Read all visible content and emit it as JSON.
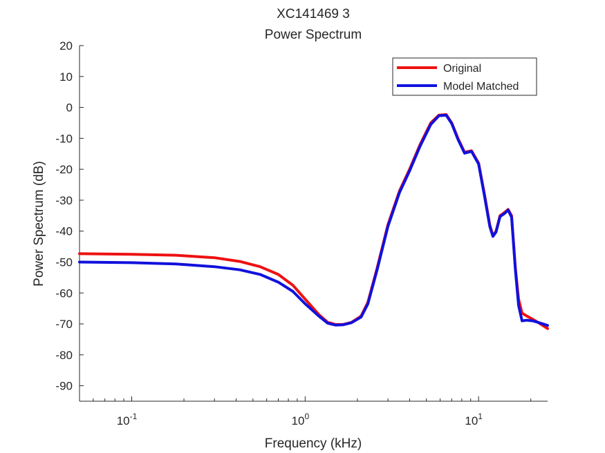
{
  "chart_data": {
    "type": "line",
    "title": "XC141469 3",
    "subtitle": "Power Spectrum",
    "xlabel": "Frequency (kHz)",
    "ylabel": "Power Spectrum (dB)",
    "xscale": "log",
    "xlim": [
      0.05,
      25
    ],
    "ylim": [
      -95,
      20
    ],
    "yticks": [
      20,
      10,
      0,
      -10,
      -20,
      -30,
      -40,
      -50,
      -60,
      -70,
      -80,
      -90
    ],
    "ytick_labels": [
      "20",
      "10",
      "0",
      "-10",
      "-20",
      "-30",
      "-40",
      "-50",
      "-60",
      "-70",
      "-80",
      "-90"
    ],
    "xticks": [
      {
        "value": 0.1,
        "base": "10",
        "exp": "-1"
      },
      {
        "value": 1,
        "base": "10",
        "exp": "0"
      },
      {
        "value": 10,
        "base": "10",
        "exp": "1"
      }
    ],
    "grid": false,
    "legend_position": "top-right",
    "series": [
      {
        "name": "Original",
        "color": "#ee1111",
        "points": [
          [
            0.05,
            -47.3
          ],
          [
            0.1,
            -47.5
          ],
          [
            0.18,
            -47.8
          ],
          [
            0.3,
            -48.6
          ],
          [
            0.42,
            -49.8
          ],
          [
            0.55,
            -51.5
          ],
          [
            0.7,
            -54
          ],
          [
            0.85,
            -57.5
          ],
          [
            1.0,
            -62
          ],
          [
            1.2,
            -67
          ],
          [
            1.35,
            -69.5
          ],
          [
            1.5,
            -70.2
          ],
          [
            1.65,
            -70.2
          ],
          [
            1.85,
            -69.5
          ],
          [
            2.1,
            -67.5
          ],
          [
            2.3,
            -63
          ],
          [
            2.6,
            -52
          ],
          [
            3.0,
            -38
          ],
          [
            3.5,
            -27
          ],
          [
            4.0,
            -20
          ],
          [
            4.6,
            -12
          ],
          [
            5.3,
            -5
          ],
          [
            5.9,
            -2.5
          ],
          [
            6.5,
            -2.3
          ],
          [
            7.0,
            -5
          ],
          [
            7.6,
            -10
          ],
          [
            8.3,
            -14.5
          ],
          [
            9.1,
            -14
          ],
          [
            10.0,
            -18
          ],
          [
            10.8,
            -28
          ],
          [
            11.6,
            -38
          ],
          [
            12.1,
            -41.5
          ],
          [
            12.6,
            -40
          ],
          [
            13.3,
            -35
          ],
          [
            14.1,
            -34
          ],
          [
            14.8,
            -33
          ],
          [
            15.5,
            -35
          ],
          [
            16.3,
            -52
          ],
          [
            17.0,
            -62
          ],
          [
            17.8,
            -66.5
          ],
          [
            19.0,
            -67.5
          ],
          [
            20.5,
            -68.5
          ],
          [
            22.0,
            -69.5
          ],
          [
            25.0,
            -71.5
          ]
        ]
      },
      {
        "name": "Model Matched",
        "color": "#1111dd",
        "points": [
          [
            0.05,
            -50
          ],
          [
            0.1,
            -50.2
          ],
          [
            0.18,
            -50.6
          ],
          [
            0.3,
            -51.5
          ],
          [
            0.42,
            -52.5
          ],
          [
            0.55,
            -54
          ],
          [
            0.7,
            -56.5
          ],
          [
            0.85,
            -59.5
          ],
          [
            1.0,
            -63.5
          ],
          [
            1.2,
            -67.5
          ],
          [
            1.35,
            -69.8
          ],
          [
            1.5,
            -70.4
          ],
          [
            1.65,
            -70.3
          ],
          [
            1.85,
            -69.6
          ],
          [
            2.1,
            -67.8
          ],
          [
            2.3,
            -63.5
          ],
          [
            2.6,
            -52.5
          ],
          [
            3.0,
            -38.5
          ],
          [
            3.5,
            -27.5
          ],
          [
            4.0,
            -20.5
          ],
          [
            4.6,
            -12.5
          ],
          [
            5.3,
            -5.5
          ],
          [
            5.9,
            -2.7
          ],
          [
            6.5,
            -2.5
          ],
          [
            7.0,
            -5.2
          ],
          [
            7.6,
            -10.3
          ],
          [
            8.3,
            -14.8
          ],
          [
            9.1,
            -14.2
          ],
          [
            10.0,
            -18.3
          ],
          [
            10.8,
            -28.5
          ],
          [
            11.6,
            -38.5
          ],
          [
            12.1,
            -41.7
          ],
          [
            12.6,
            -40.3
          ],
          [
            13.3,
            -35.3
          ],
          [
            14.1,
            -34.3
          ],
          [
            14.8,
            -33.2
          ],
          [
            15.5,
            -35.5
          ],
          [
            16.3,
            -52.5
          ],
          [
            17.0,
            -64
          ],
          [
            17.8,
            -69
          ],
          [
            19.0,
            -68.8
          ],
          [
            20.5,
            -69
          ],
          [
            22.0,
            -69.5
          ],
          [
            25.0,
            -70.5
          ]
        ]
      }
    ]
  }
}
